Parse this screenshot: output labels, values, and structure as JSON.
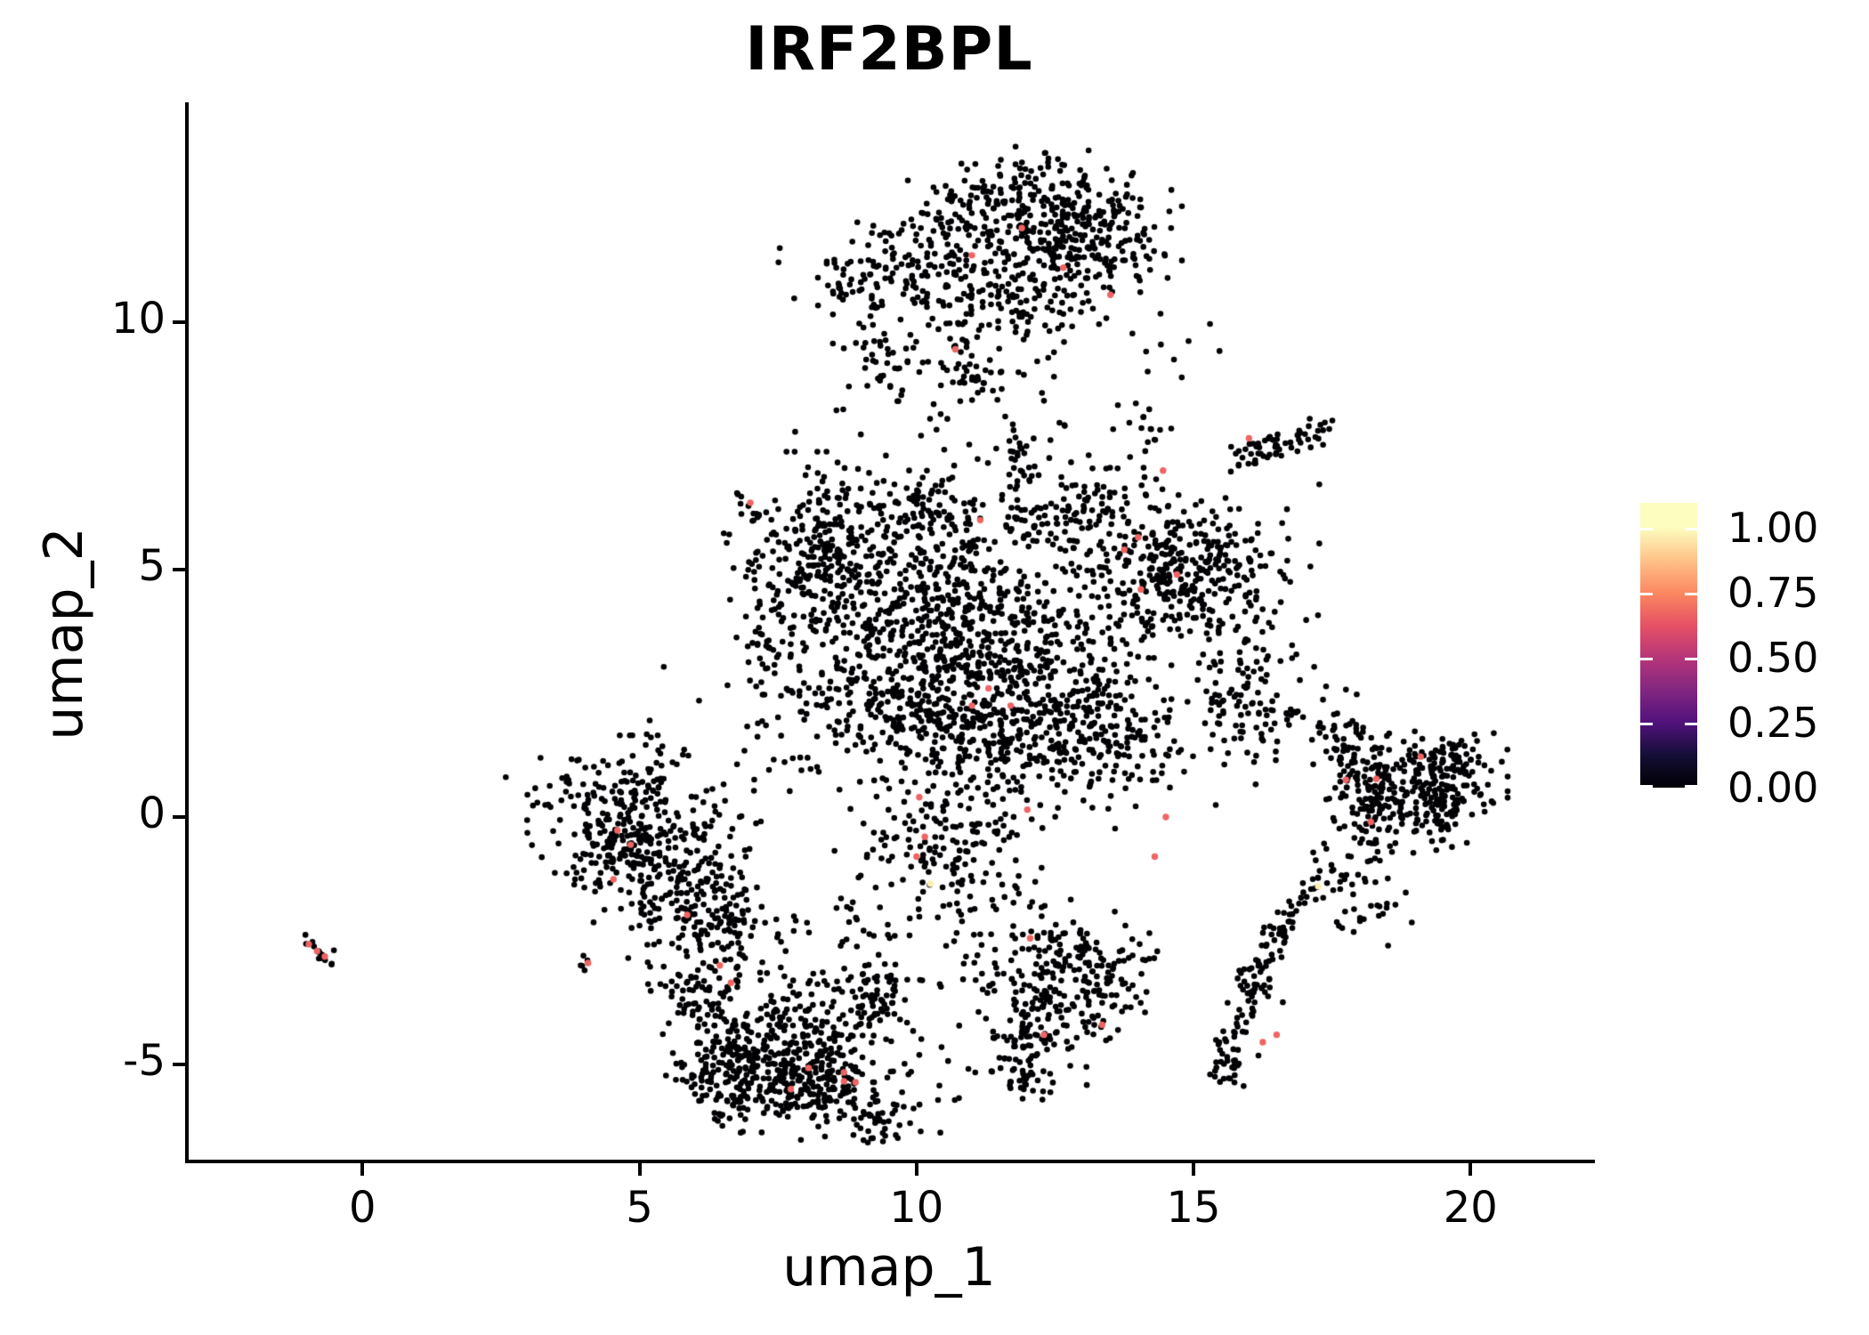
{
  "title": "IRF2BPL",
  "axes": {
    "x_label": "umap_1",
    "y_label": "umap_2"
  },
  "legend": {
    "entries": [
      {
        "label": "1.00",
        "value": 1.0
      },
      {
        "label": "0.75",
        "value": 0.75
      },
      {
        "label": "0.50",
        "value": 0.5
      },
      {
        "label": "0.25",
        "value": 0.25
      },
      {
        "label": "0.00",
        "value": 0.0
      }
    ]
  },
  "colors": {
    "background": "#ffffff",
    "axis": "#000000",
    "text": "#000000",
    "zero_expression_point": "#000004",
    "mid_expression_point": "#de4968",
    "high_expression_point": "#f9f3af"
  },
  "chart_data": {
    "type": "scatter",
    "title": "IRF2BPL",
    "xlabel": "umap_1",
    "ylabel": "umap_2",
    "xlim": [
      -3.17,
      22.18
    ],
    "ylim": [
      -6.96,
      14.44
    ],
    "xticks": [
      0,
      5,
      10,
      15,
      20
    ],
    "yticks": [
      -5,
      0,
      5,
      10
    ],
    "grid": false,
    "legend_position": "right",
    "colorbar": {
      "tick_values": [
        0.0,
        0.25,
        0.5,
        0.75,
        1.0
      ],
      "range": [
        0.0,
        1.0
      ],
      "palette": "magma",
      "stops": [
        [
          0.0,
          "#000004"
        ],
        [
          0.125,
          "#140e36"
        ],
        [
          0.25,
          "#51127c"
        ],
        [
          0.375,
          "#822681"
        ],
        [
          0.5,
          "#b63679"
        ],
        [
          0.625,
          "#e65164"
        ],
        [
          0.75,
          "#fb8861"
        ],
        [
          0.875,
          "#fec287"
        ],
        [
          1.0,
          "#fcfdbf"
        ]
      ]
    },
    "point_radius_px": 3.3,
    "seed": 42,
    "clusters": [
      {
        "name": "top-band",
        "x": 11.8,
        "y": 12.3,
        "sx": 1.15,
        "sy": 0.45,
        "n": 210
      },
      {
        "name": "top-right-mass",
        "x": 12.6,
        "y": 11.3,
        "sx": 0.85,
        "sy": 0.55,
        "n": 170
      },
      {
        "name": "top-left-arm-inner",
        "x": 10.2,
        "y": 11.2,
        "sx": 0.75,
        "sy": 0.4,
        "n": 90
      },
      {
        "name": "top-left-arm-outer",
        "x": 8.9,
        "y": 10.8,
        "sx": 0.55,
        "sy": 0.35,
        "n": 55
      },
      {
        "name": "top-center-scatter",
        "x": 11.3,
        "y": 10.2,
        "sx": 0.95,
        "sy": 0.55,
        "n": 120
      },
      {
        "name": "top-lower-left-appendage",
        "x": 9.4,
        "y": 9.2,
        "sx": 0.4,
        "sy": 0.55,
        "n": 45
      },
      {
        "name": "top-small-blob",
        "x": 11.15,
        "y": 8.9,
        "sx": 0.35,
        "sy": 0.3,
        "n": 30
      },
      {
        "name": "top-right-edge",
        "x": 13.3,
        "y": 11.9,
        "sx": 0.5,
        "sy": 0.5,
        "n": 60
      },
      {
        "name": "topmost-blob",
        "x": 12.1,
        "y": 13.0,
        "sx": 0.3,
        "sy": 0.3,
        "n": 25
      },
      {
        "name": "top-descending-chain",
        "type": "chain",
        "x1": 11.75,
        "y1": 7.95,
        "x2": 12.0,
        "y2": 6.7,
        "w": 0.09,
        "n": 20
      },
      {
        "name": "top-right-sparse",
        "x": 14.9,
        "y": 9.4,
        "sx": 0.5,
        "sy": 0.5,
        "n": 10
      },
      {
        "name": "top-central-bridge",
        "x": 11.4,
        "y": 7.9,
        "sx": 1.5,
        "sy": 0.55,
        "n": 30
      },
      {
        "name": "upper-right-streak",
        "type": "chain",
        "x1": 15.6,
        "y1": 7.15,
        "x2": 17.5,
        "y2": 7.9,
        "w": 0.14,
        "n": 60
      },
      {
        "name": "upper-right-column",
        "type": "chain",
        "x1": 14.15,
        "y1": 8.3,
        "x2": 14.2,
        "y2": 6.4,
        "w": 0.1,
        "n": 14
      },
      {
        "name": "central-left-lobe",
        "x": 8.25,
        "y": 5.3,
        "sx": 0.7,
        "sy": 0.8,
        "n": 270
      },
      {
        "name": "central-upper",
        "x": 10.3,
        "y": 4.5,
        "sx": 1.0,
        "sy": 1.0,
        "n": 360
      },
      {
        "name": "central-core",
        "x": 12.0,
        "y": 3.2,
        "sx": 1.0,
        "sy": 1.05,
        "n": 360
      },
      {
        "name": "central-right-lobe",
        "x": 14.8,
        "y": 4.9,
        "sx": 0.95,
        "sy": 0.7,
        "n": 360
      },
      {
        "name": "central-lower",
        "x": 11.2,
        "y": 1.8,
        "sx": 1.0,
        "sy": 0.8,
        "n": 290
      },
      {
        "name": "central-left-lower",
        "x": 9.3,
        "y": 2.6,
        "sx": 0.8,
        "sy": 0.9,
        "n": 210
      },
      {
        "name": "central-lower-right",
        "x": 13.4,
        "y": 1.5,
        "sx": 0.8,
        "sy": 0.7,
        "n": 170
      },
      {
        "name": "central-bottom-tail",
        "x": 10.6,
        "y": -0.55,
        "sx": 0.8,
        "sy": 0.7,
        "n": 150
      },
      {
        "name": "central-top-edge",
        "x": 12.8,
        "y": 6.15,
        "sx": 0.9,
        "sy": 0.4,
        "n": 110
      },
      {
        "name": "central-top-left-edge",
        "x": 9.9,
        "y": 6.4,
        "sx": 0.5,
        "sy": 0.35,
        "n": 55
      },
      {
        "name": "central-right-arm",
        "x": 15.9,
        "y": 2.5,
        "sx": 0.45,
        "sy": 0.8,
        "n": 85
      },
      {
        "name": "central-left-edge-arm",
        "x": 7.35,
        "y": 3.4,
        "sx": 0.35,
        "sy": 0.6,
        "n": 50
      },
      {
        "name": "central-topleft-streak",
        "type": "chain",
        "x1": 6.65,
        "y1": 6.55,
        "x2": 7.2,
        "y2": 6.0,
        "w": 0.07,
        "n": 10
      },
      {
        "name": "central-descent",
        "x": 12.2,
        "y": -1.9,
        "sx": 0.45,
        "sy": 0.55,
        "n": 25
      },
      {
        "name": "mid-sparse-column",
        "type": "chain",
        "x1": 10.55,
        "y1": -0.8,
        "x2": 10.95,
        "y2": -3.2,
        "w": 0.2,
        "n": 22
      },
      {
        "name": "left-cluster-edge",
        "x": 4.55,
        "y": -0.3,
        "sx": 0.45,
        "sy": 0.75,
        "n": 160
      },
      {
        "name": "left-cluster-body",
        "x": 5.5,
        "y": -0.9,
        "sx": 0.65,
        "sy": 0.75,
        "n": 190
      },
      {
        "name": "left-cluster-lower",
        "x": 6.3,
        "y": -1.9,
        "sx": 0.5,
        "sy": 0.55,
        "n": 110
      },
      {
        "name": "left-cluster-tip",
        "x": 5.05,
        "y": 0.85,
        "sx": 0.35,
        "sy": 0.35,
        "n": 40
      },
      {
        "name": "left-outliers",
        "x": 3.5,
        "y": 0.3,
        "sx": 0.5,
        "sy": 0.5,
        "n": 26
      },
      {
        "name": "left-central-bridge",
        "x": 7.2,
        "y": 1.2,
        "sx": 1.1,
        "sy": 0.9,
        "n": 38
      },
      {
        "name": "left-bottom-bridge",
        "x": 6.6,
        "y": -2.7,
        "sx": 0.5,
        "sy": 0.4,
        "n": 26
      },
      {
        "name": "small-pair",
        "x": 4.0,
        "y": -2.95,
        "sx": 0.12,
        "sy": 0.1,
        "n": 5
      },
      {
        "name": "far-left-streak",
        "type": "chain",
        "x1": -1.12,
        "y1": -2.4,
        "x2": -0.56,
        "y2": -2.95,
        "w": 0.05,
        "n": 12
      },
      {
        "name": "far-left-single",
        "x": -0.45,
        "y": -2.7,
        "sx": 0.04,
        "sy": 0.04,
        "n": 1
      },
      {
        "name": "bottom-left-upper",
        "x": 7.5,
        "y": -4.4,
        "sx": 0.8,
        "sy": 0.65,
        "n": 250
      },
      {
        "name": "bottom-left-band",
        "x": 8.1,
        "y": -5.4,
        "sx": 0.75,
        "sy": 0.45,
        "n": 230
      },
      {
        "name": "bottom-left-west",
        "x": 6.5,
        "y": -5.2,
        "sx": 0.5,
        "sy": 0.5,
        "n": 110
      },
      {
        "name": "bottom-left-northeast",
        "x": 9.3,
        "y": -3.7,
        "sx": 0.45,
        "sy": 0.5,
        "n": 85
      },
      {
        "name": "bottom-left-northwest",
        "x": 6.0,
        "y": -3.6,
        "sx": 0.4,
        "sy": 0.4,
        "n": 55
      },
      {
        "name": "bottom-left-tail",
        "x": 9.35,
        "y": -6.2,
        "sx": 0.3,
        "sy": 0.25,
        "n": 28
      },
      {
        "name": "bottom-left-east-sparse",
        "x": 10.3,
        "y": -5.4,
        "sx": 0.55,
        "sy": 0.45,
        "n": 14
      },
      {
        "name": "bottom-left-bridge",
        "x": 9.0,
        "y": -2.2,
        "sx": 0.7,
        "sy": 0.5,
        "n": 22
      },
      {
        "name": "bottom-mid-core",
        "x": 12.2,
        "y": -3.9,
        "sx": 0.55,
        "sy": 0.6,
        "n": 150
      },
      {
        "name": "bottom-mid-upper",
        "x": 12.9,
        "y": -2.8,
        "sx": 0.5,
        "sy": 0.5,
        "n": 80
      },
      {
        "name": "bottom-mid-tip",
        "x": 11.9,
        "y": -5.15,
        "sx": 0.35,
        "sy": 0.3,
        "n": 40
      },
      {
        "name": "bottom-mid-right",
        "x": 13.6,
        "y": -3.4,
        "sx": 0.4,
        "sy": 0.45,
        "n": 50
      },
      {
        "name": "right-lower-chain",
        "type": "chain",
        "x1": 16.7,
        "y1": -1.7,
        "x2": 15.55,
        "y2": -4.9,
        "w": 0.16,
        "n": 80
      },
      {
        "name": "right-lower-tip",
        "x": 15.6,
        "y": -5.05,
        "sx": 0.22,
        "sy": 0.18,
        "n": 20
      },
      {
        "name": "right-lower-knot",
        "x": 16.2,
        "y": -3.3,
        "sx": 0.18,
        "sy": 0.3,
        "n": 18
      },
      {
        "name": "right-arm-upper",
        "x": 17.3,
        "y": 1.8,
        "sx": 0.45,
        "sy": 0.4,
        "n": 35
      },
      {
        "name": "right-arm-band",
        "x": 16.3,
        "y": 2.35,
        "sx": 0.55,
        "sy": 0.3,
        "n": 28
      },
      {
        "name": "far-right-dense",
        "x": 19.5,
        "y": 0.5,
        "sx": 0.45,
        "sy": 0.45,
        "n": 160
      },
      {
        "name": "far-right-west",
        "x": 18.4,
        "y": 0.3,
        "sx": 0.4,
        "sy": 0.5,
        "n": 120
      },
      {
        "name": "far-right-topband",
        "x": 19.3,
        "y": 1.2,
        "sx": 0.55,
        "sy": 0.22,
        "n": 60
      },
      {
        "name": "far-right-upper-arm",
        "x": 17.8,
        "y": 0.9,
        "sx": 0.3,
        "sy": 0.4,
        "n": 45
      },
      {
        "name": "far-right-tail",
        "x": 17.9,
        "y": -1.3,
        "sx": 0.4,
        "sy": 0.5,
        "n": 50
      },
      {
        "name": "far-right-descent",
        "type": "chain",
        "x1": 17.55,
        "y1": -0.6,
        "x2": 16.65,
        "y2": -2.3,
        "w": 0.12,
        "n": 25
      },
      {
        "name": "top-central-sparse",
        "x": 13.1,
        "y": 7.4,
        "sx": 1.0,
        "sy": 0.6,
        "n": 18
      }
    ],
    "highlights": [
      {
        "x": 11.9,
        "y": 11.9,
        "value": 0.67
      },
      {
        "x": 11.0,
        "y": 11.35,
        "value": 0.67
      },
      {
        "x": 12.65,
        "y": 11.1,
        "value": 0.67
      },
      {
        "x": 13.5,
        "y": 10.55,
        "value": 0.67
      },
      {
        "x": 10.7,
        "y": 9.45,
        "value": 0.67
      },
      {
        "x": 14.45,
        "y": 7.0,
        "value": 0.67
      },
      {
        "x": 16.0,
        "y": 7.65,
        "value": 0.67
      },
      {
        "x": 7.0,
        "y": 6.35,
        "value": 0.67
      },
      {
        "x": 11.15,
        "y": 6.0,
        "value": 0.67
      },
      {
        "x": 14.0,
        "y": 5.65,
        "value": 0.67
      },
      {
        "x": 13.75,
        "y": 5.4,
        "value": 0.67
      },
      {
        "x": 14.7,
        "y": 4.9,
        "value": 0.67
      },
      {
        "x": 14.05,
        "y": 4.6,
        "value": 0.67
      },
      {
        "x": 11.3,
        "y": 2.6,
        "value": 0.67
      },
      {
        "x": 11.0,
        "y": 2.25,
        "value": 0.67
      },
      {
        "x": 11.7,
        "y": 2.25,
        "value": 0.67
      },
      {
        "x": 10.05,
        "y": 0.4,
        "value": 0.67
      },
      {
        "x": 12.0,
        "y": 0.15,
        "value": 0.67
      },
      {
        "x": 10.15,
        "y": -0.4,
        "value": 0.67
      },
      {
        "x": 10.0,
        "y": -0.8,
        "value": 0.67
      },
      {
        "x": 14.5,
        "y": 0.0,
        "value": 0.67
      },
      {
        "x": 14.3,
        "y": -0.8,
        "value": 0.67
      },
      {
        "x": 12.05,
        "y": -2.45,
        "value": 0.67
      },
      {
        "x": 10.25,
        "y": -1.35,
        "value": 0.97
      },
      {
        "x": 17.25,
        "y": -1.4,
        "value": 0.97
      },
      {
        "x": 4.6,
        "y": -0.27,
        "value": 0.67
      },
      {
        "x": 4.84,
        "y": -0.56,
        "value": 0.67
      },
      {
        "x": 4.53,
        "y": -1.26,
        "value": 0.67
      },
      {
        "x": 5.86,
        "y": -1.98,
        "value": 0.67
      },
      {
        "x": 4.07,
        "y": -2.95,
        "value": 0.67
      },
      {
        "x": -0.97,
        "y": -2.57,
        "value": 0.67
      },
      {
        "x": -0.82,
        "y": -2.71,
        "value": 0.67
      },
      {
        "x": -0.68,
        "y": -2.82,
        "value": 0.67
      },
      {
        "x": 6.45,
        "y": -3.0,
        "value": 0.67
      },
      {
        "x": 6.65,
        "y": -3.35,
        "value": 0.67
      },
      {
        "x": 8.05,
        "y": -5.07,
        "value": 0.67
      },
      {
        "x": 8.69,
        "y": -5.16,
        "value": 0.67
      },
      {
        "x": 8.69,
        "y": -5.34,
        "value": 0.67
      },
      {
        "x": 8.9,
        "y": -5.36,
        "value": 0.67
      },
      {
        "x": 7.73,
        "y": -5.5,
        "value": 0.67
      },
      {
        "x": 13.35,
        "y": -4.2,
        "value": 0.67
      },
      {
        "x": 12.3,
        "y": -4.4,
        "value": 0.67
      },
      {
        "x": 16.5,
        "y": -4.4,
        "value": 0.67
      },
      {
        "x": 16.25,
        "y": -4.55,
        "value": 0.67
      },
      {
        "x": 19.1,
        "y": 1.22,
        "value": 0.67
      },
      {
        "x": 18.3,
        "y": 0.77,
        "value": 0.67
      },
      {
        "x": 17.75,
        "y": 0.75,
        "value": 0.67
      },
      {
        "x": 18.2,
        "y": -0.1,
        "value": 0.67
      }
    ]
  }
}
